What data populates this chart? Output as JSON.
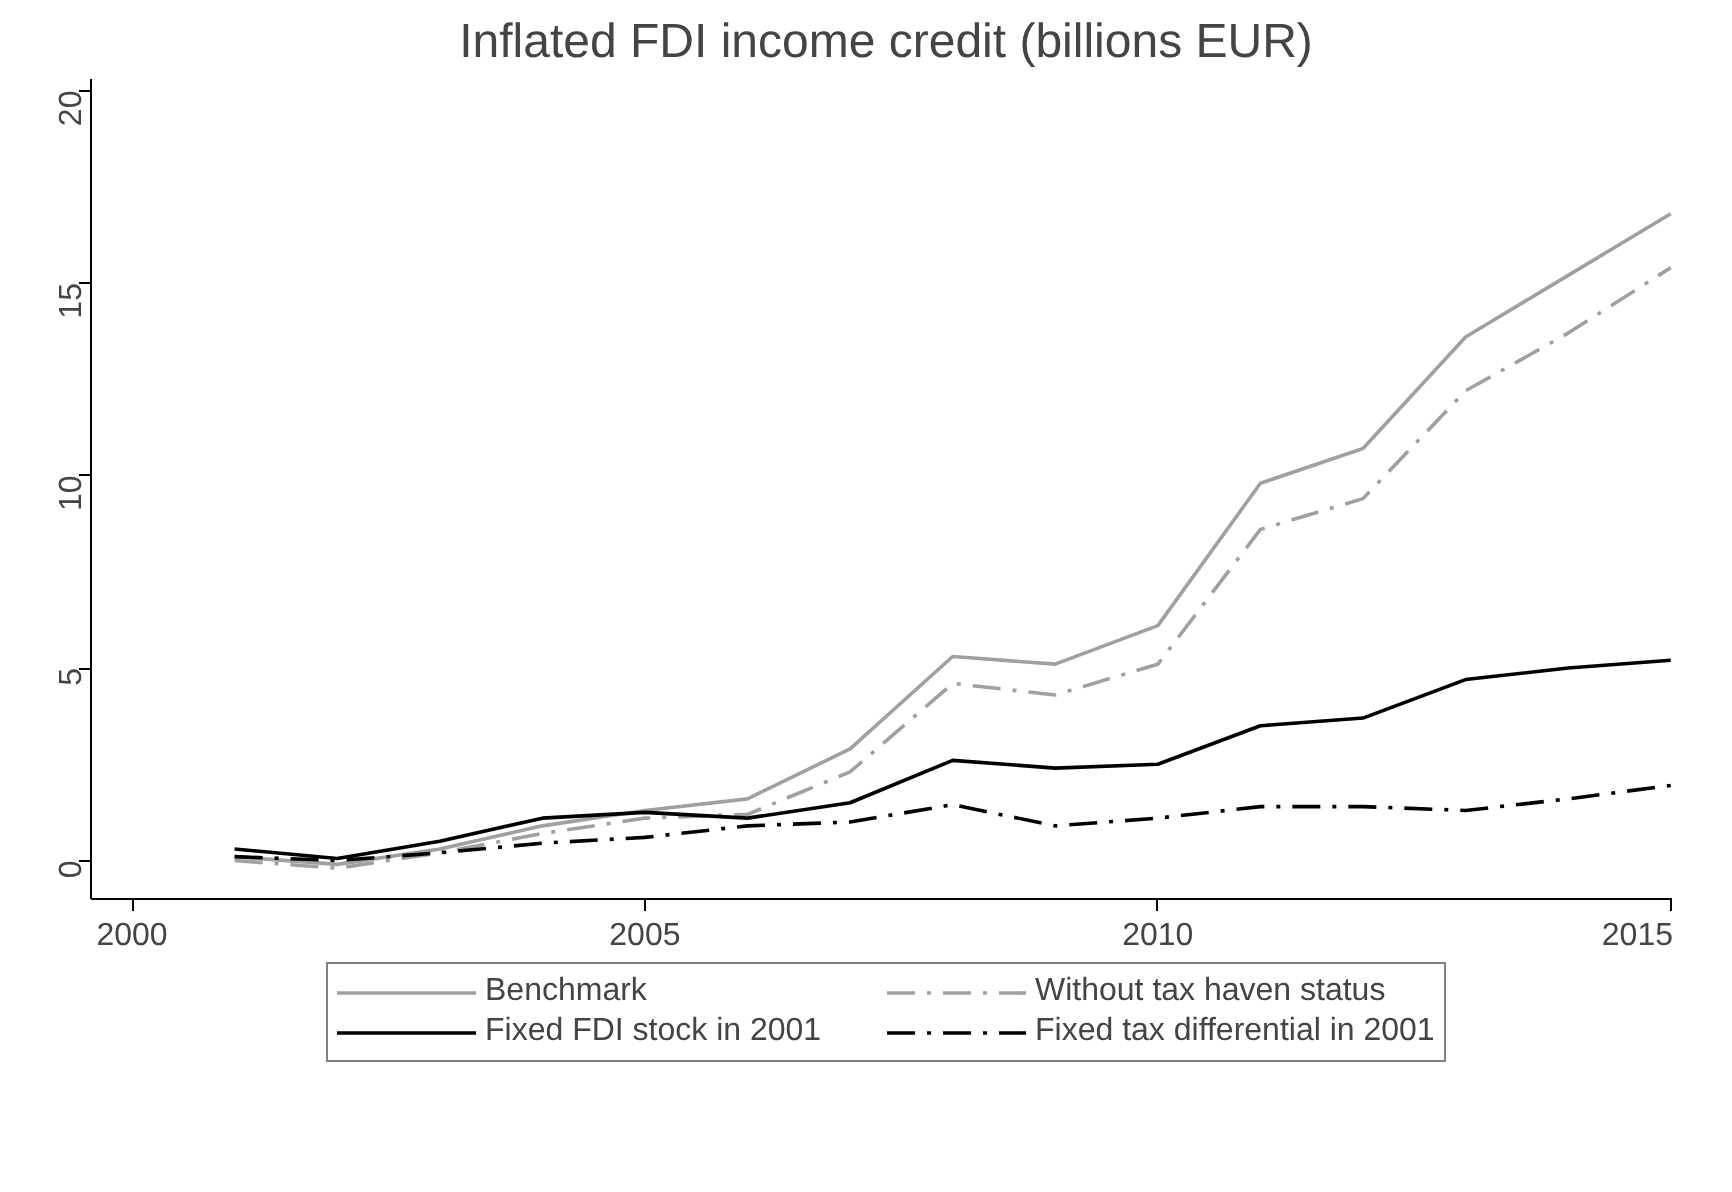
{
  "chart_data": {
    "type": "line",
    "title": "Inflated FDI income credit (billions EUR)",
    "x": [
      2001,
      2002,
      2003,
      2004,
      2005,
      2006,
      2007,
      2008,
      2009,
      2010,
      2011,
      2012,
      2013,
      2014,
      2015
    ],
    "series": [
      {
        "name": "Benchmark",
        "color": "#a0a0a0",
        "line_style": "solid",
        "values": [
          0.1,
          -0.1,
          0.3,
          0.9,
          1.3,
          1.6,
          2.9,
          5.3,
          5.1,
          6.1,
          9.8,
          10.7,
          13.6,
          15.2,
          16.8
        ]
      },
      {
        "name": "Without tax haven status",
        "color": "#a0a0a0",
        "line_style": "dashdot",
        "values": [
          0.0,
          -0.2,
          0.2,
          0.7,
          1.1,
          1.2,
          2.3,
          4.6,
          4.3,
          5.1,
          8.6,
          9.4,
          12.2,
          13.7,
          15.4
        ]
      },
      {
        "name": "Fixed FDI stock in 2001",
        "color": "#000000",
        "line_style": "solid",
        "values": [
          0.3,
          0.05,
          0.5,
          1.1,
          1.25,
          1.1,
          1.5,
          2.6,
          2.4,
          2.5,
          3.5,
          3.7,
          4.7,
          5.0,
          5.2
        ]
      },
      {
        "name": "Fixed tax differential in 2001",
        "color": "#000000",
        "line_style": "dashdot",
        "values": [
          0.1,
          0.0,
          0.2,
          0.45,
          0.6,
          0.9,
          1.0,
          1.45,
          0.9,
          1.1,
          1.4,
          1.4,
          1.3,
          1.6,
          1.95
        ]
      }
    ],
    "xlim": [
      1999.6,
      2015.1
    ],
    "ylim": [
      -1,
      20.3
    ],
    "xticks": [
      2000,
      2005,
      2010,
      2015
    ],
    "yticks": [
      0,
      5,
      10,
      15,
      20
    ],
    "grid": false,
    "legend": "bottom",
    "marker": "none"
  }
}
